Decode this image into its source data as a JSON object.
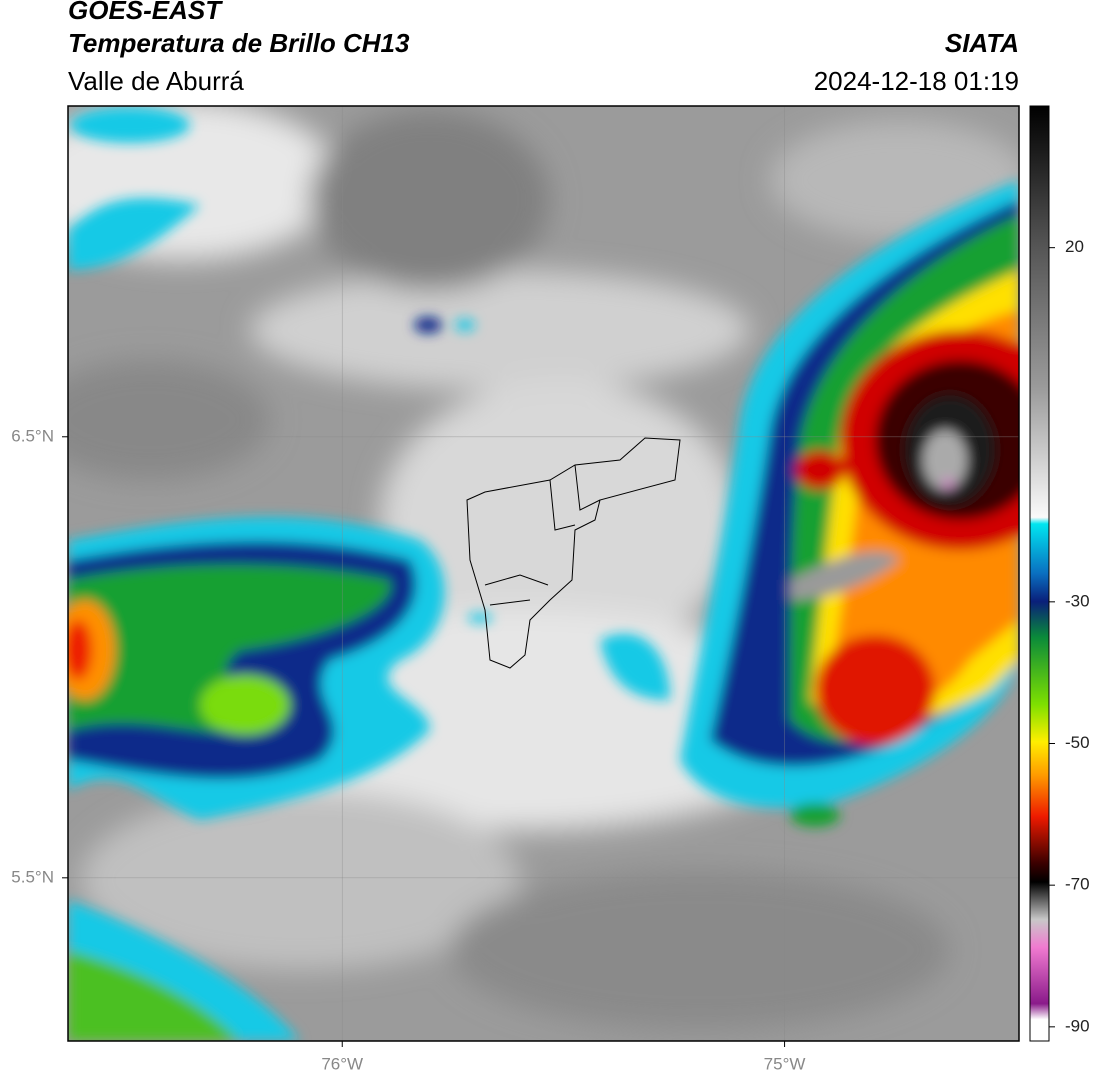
{
  "header": {
    "satellite": "GOES-EAST",
    "product": "Temperatura de Brillo CH13",
    "region": "Valle de Aburrá",
    "source": "SIATA",
    "datetime": "2024-12-18 01:19"
  },
  "map": {
    "lat_lim": [
      5.13,
      7.25
    ],
    "lon_lim": [
      -76.62,
      -74.47
    ],
    "lat_ticks": [
      {
        "value": 6.5,
        "label": "6.5°N"
      },
      {
        "value": 5.5,
        "label": "5.5°N"
      }
    ],
    "lon_ticks": [
      {
        "value": -76,
        "label": "76°W"
      },
      {
        "value": -75,
        "label": "75°W"
      }
    ],
    "grid": true
  },
  "colorbar": {
    "lim": [
      -92,
      40
    ],
    "ticks": [
      20,
      -30,
      -50,
      -70,
      -90
    ]
  }
}
